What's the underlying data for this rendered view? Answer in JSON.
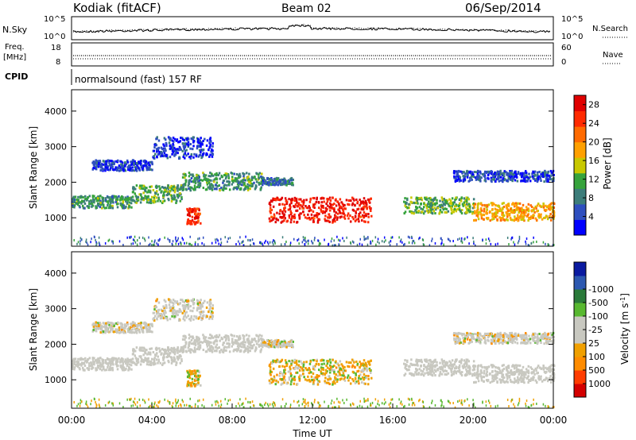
{
  "header": {
    "station": "Kodiak (fitACF)",
    "beam": "Beam 02",
    "date": "06/Sep/2014"
  },
  "panels": {
    "nsky": {
      "label": "N.Sky",
      "right_label": "N.Search",
      "left_ticks": [
        "10^5",
        "10^0"
      ],
      "right_ticks": [
        "10^5",
        "10^0"
      ]
    },
    "freq": {
      "label": "Freq.",
      "unit": "[MHz]",
      "left_ticks": [
        "18",
        "8"
      ],
      "right_ticks": [
        "60",
        "0"
      ],
      "right_label": "Nave"
    },
    "cpid": {
      "label": "CPID",
      "text": "normalsound (fast) 157 RF"
    }
  },
  "colors": {
    "power_scale": [
      "#0000ff",
      "#2e4fbf",
      "#3c7d7a",
      "#36a33c",
      "#c8c800",
      "#ffa000",
      "#ff6a00",
      "#ff2a00",
      "#e00000"
    ],
    "velocity_scale": [
      "#d40000",
      "#ff3c00",
      "#ff8c00",
      "#f0a000",
      "#c8c8c0",
      "#c8c8c0",
      "#58b830",
      "#2a7a3a",
      "#2c58b0",
      "#0a1aa0"
    ],
    "ground_scatter": "#c8c8c0"
  },
  "chart_data": [
    {
      "type": "heatmap",
      "name": "power",
      "ylabel": "Slant Range [km]",
      "y_ticks": [
        "1000",
        "2000",
        "3000",
        "4000"
      ],
      "ylim": [
        200,
        4600
      ],
      "colorbar_label": "Power [dB]",
      "colorbar_ticks": [
        "4",
        "8",
        "12",
        "16",
        "20",
        "24",
        "28"
      ],
      "range": [
        0,
        30
      ],
      "bands": [
        {
          "x": [
            0.0,
            3.0
          ],
          "y": [
            1300,
            1650
          ],
          "level": 10
        },
        {
          "x": [
            3.0,
            5.5
          ],
          "y": [
            1450,
            1950
          ],
          "level": 11
        },
        {
          "x": [
            5.5,
            9.5
          ],
          "y": [
            1800,
            2300
          ],
          "level": 10
        },
        {
          "x": [
            9.5,
            11.0
          ],
          "y": [
            1950,
            2150
          ],
          "level": 7
        },
        {
          "x": [
            16.5,
            20.0
          ],
          "y": [
            1150,
            1600
          ],
          "level": 12
        },
        {
          "x": [
            20.0,
            24.0
          ],
          "y": [
            950,
            1450
          ],
          "level": 18
        },
        {
          "x": [
            1.0,
            4.0
          ],
          "y": [
            2350,
            2650
          ],
          "level": 4
        },
        {
          "x": [
            4.0,
            7.0
          ],
          "y": [
            2700,
            3300
          ],
          "level": 4
        },
        {
          "x": [
            19.0,
            24.0
          ],
          "y": [
            2050,
            2350
          ],
          "level": 5
        },
        {
          "x": [
            9.8,
            14.9
          ],
          "y": [
            900,
            1600
          ],
          "level": 27
        },
        {
          "x": [
            5.7,
            6.4
          ],
          "y": [
            850,
            1300
          ],
          "level": 26
        }
      ]
    },
    {
      "type": "heatmap",
      "name": "velocity",
      "ylabel": "Slant Range [km]",
      "y_ticks": [
        "1000",
        "2000",
        "3000",
        "4000"
      ],
      "ylim": [
        200,
        4600
      ],
      "colorbar_label": "Velocity [m s^-1]",
      "colorbar_ticks": [
        "1000",
        "500",
        "100",
        "25",
        "-25",
        "-100",
        "-500",
        "-1000"
      ],
      "xlabel": "Time UT",
      "x_ticks": [
        "00:00",
        "04:00",
        "08:00",
        "12:00",
        "16:00",
        "20:00",
        "00:00"
      ],
      "xlim": [
        0,
        24
      ]
    }
  ]
}
